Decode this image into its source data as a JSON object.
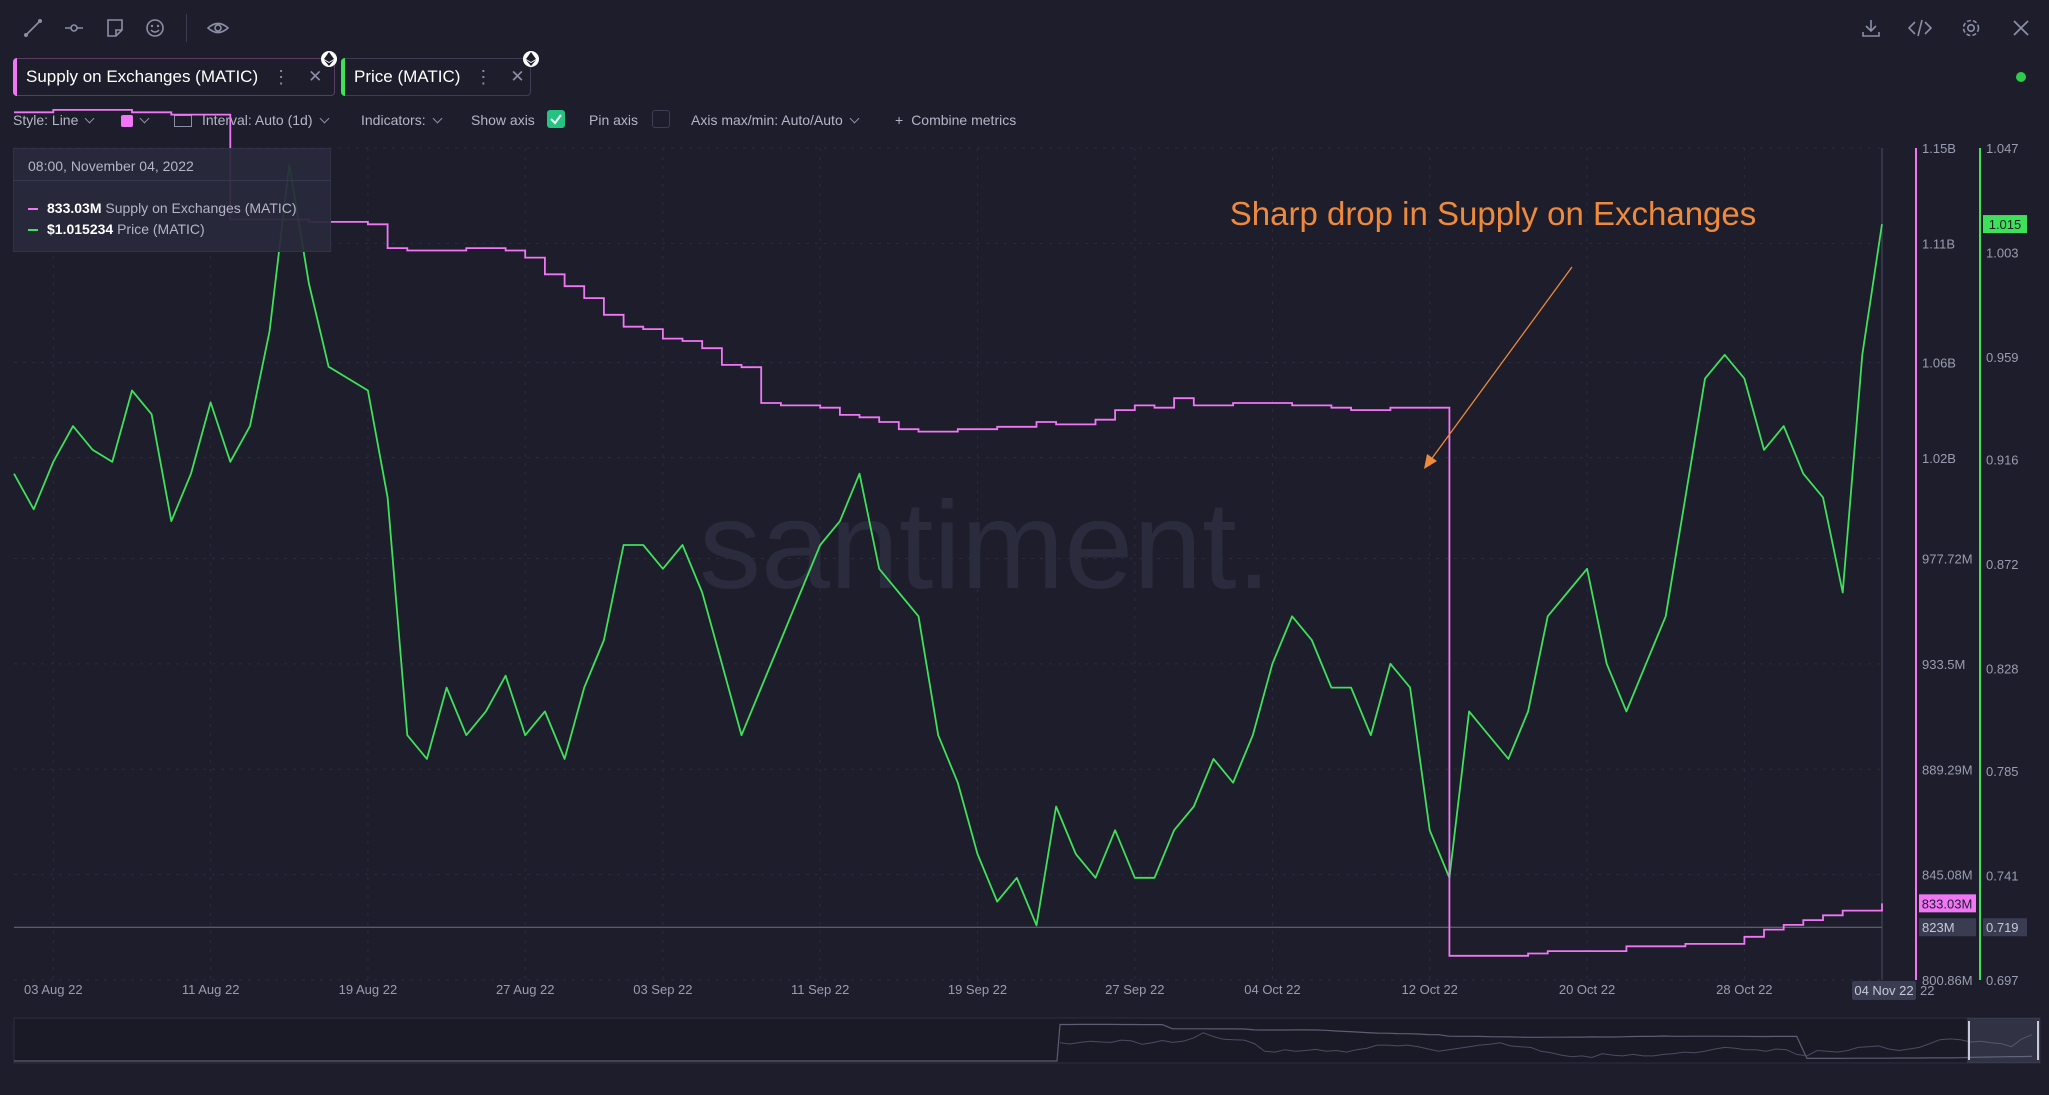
{
  "colors": {
    "supply": "#f176f6",
    "price": "#3fe05a",
    "annotation": "#ee8a3c",
    "background": "#1d1d2b"
  },
  "toolbar": {
    "left_icons": [
      "line-tool-icon",
      "horizontal-line-icon",
      "note-icon",
      "emoji-icon",
      "eye-icon"
    ],
    "right_icons": [
      "download-icon",
      "embed-code-icon",
      "settings-gear-icon",
      "close-icon"
    ]
  },
  "metrics": [
    {
      "label": "Supply on Exchanges (MATIC)",
      "color": "#f176f6",
      "badge": "ethereum-icon"
    },
    {
      "label": "Price (MATIC)",
      "color": "#3fe05a",
      "badge": "ethereum-icon"
    }
  ],
  "settings": {
    "style": "Style: Line",
    "interval": "Interval: Auto (1d)",
    "indicators": "Indicators:",
    "show_axis": "Show axis",
    "show_axis_checked": true,
    "pin_axis": "Pin axis",
    "pin_axis_checked": false,
    "axis_maxmin": "Axis max/min: Auto/Auto",
    "combine": "Combine metrics",
    "combine_prefix": "+"
  },
  "tooltip": {
    "date": "08:00, November 04, 2022",
    "rows": [
      {
        "value": "833.03M",
        "label": "Supply on Exchanges (MATIC)"
      },
      {
        "value": "$1.015234",
        "label": "Price (MATIC)"
      }
    ]
  },
  "annotation": "Sharp drop in Supply on Exchanges",
  "watermark": "santiment.",
  "chart_data": {
    "type": "line",
    "x_start": "2022-08-01",
    "x_end": "2022-11-04",
    "xtick_labels": [
      "03 Aug 22",
      "11 Aug 22",
      "19 Aug 22",
      "27 Aug 22",
      "03 Sep 22",
      "11 Sep 22",
      "19 Sep 22",
      "27 Sep 22",
      "04 Oct 22",
      "12 Oct 22",
      "20 Oct 22",
      "28 Oct 22"
    ],
    "x_end_label": "04 Nov 22",
    "x_end_label_tail": "22",
    "axes": {
      "supply": {
        "ticks": [
          "1.15B",
          "1.11B",
          "1.06B",
          "1.02B",
          "977.72M",
          "933.5M",
          "889.29M",
          "845.08M",
          "800.86M"
        ],
        "tick_values": [
          1150000000,
          1110000000,
          1060000000,
          1020000000,
          977720000,
          933500000,
          889290000,
          845080000,
          800860000
        ],
        "current_label": "833.03M",
        "current_value": 833030000,
        "crosshair_label": "823M",
        "crosshair_value": 823000000
      },
      "price": {
        "ticks": [
          "1.047",
          "1.003",
          "0.959",
          "0.916",
          "0.872",
          "0.828",
          "0.785",
          "0.741",
          "0.697"
        ],
        "tick_values": [
          1.047,
          1.003,
          0.959,
          0.916,
          0.872,
          0.828,
          0.785,
          0.741,
          0.697
        ],
        "current_label": "1.015",
        "current_value": 1.015,
        "crosshair_label": "0.719",
        "crosshair_value": 0.719
      }
    },
    "series": [
      {
        "name": "Supply on Exchanges (MATIC)",
        "axis": "supply",
        "step": true,
        "dates": [
          "2022-08-01",
          "2022-08-02",
          "2022-08-03",
          "2022-08-04",
          "2022-08-05",
          "2022-08-06",
          "2022-08-07",
          "2022-08-08",
          "2022-08-09",
          "2022-08-10",
          "2022-08-11",
          "2022-08-12",
          "2022-08-13",
          "2022-08-14",
          "2022-08-15",
          "2022-08-16",
          "2022-08-17",
          "2022-08-18",
          "2022-08-19",
          "2022-08-20",
          "2022-08-21",
          "2022-08-22",
          "2022-08-23",
          "2022-08-24",
          "2022-08-25",
          "2022-08-26",
          "2022-08-27",
          "2022-08-28",
          "2022-08-29",
          "2022-08-30",
          "2022-08-31",
          "2022-09-01",
          "2022-09-02",
          "2022-09-03",
          "2022-09-04",
          "2022-09-05",
          "2022-09-06",
          "2022-09-07",
          "2022-09-08",
          "2022-09-09",
          "2022-09-10",
          "2022-09-11",
          "2022-09-12",
          "2022-09-13",
          "2022-09-14",
          "2022-09-15",
          "2022-09-16",
          "2022-09-17",
          "2022-09-18",
          "2022-09-19",
          "2022-09-20",
          "2022-09-21",
          "2022-09-22",
          "2022-09-23",
          "2022-09-24",
          "2022-09-25",
          "2022-09-26",
          "2022-09-27",
          "2022-09-28",
          "2022-09-29",
          "2022-09-30",
          "2022-10-01",
          "2022-10-02",
          "2022-10-03",
          "2022-10-04",
          "2022-10-05",
          "2022-10-06",
          "2022-10-07",
          "2022-10-08",
          "2022-10-09",
          "2022-10-10",
          "2022-10-11",
          "2022-10-12",
          "2022-10-13",
          "2022-10-14",
          "2022-10-15",
          "2022-10-16",
          "2022-10-17",
          "2022-10-18",
          "2022-10-19",
          "2022-10-20",
          "2022-10-21",
          "2022-10-22",
          "2022-10-23",
          "2022-10-24",
          "2022-10-25",
          "2022-10-26",
          "2022-10-27",
          "2022-10-28",
          "2022-10-29",
          "2022-10-30",
          "2022-10-31",
          "2022-11-01",
          "2022-11-02",
          "2022-11-03",
          "2022-11-04"
        ],
        "values": [
          1165,
          1165,
          1166,
          1166,
          1166,
          1166,
          1165,
          1165,
          1164,
          1164,
          1164,
          1120,
          1120,
          1120,
          1120,
          1119,
          1119,
          1119,
          1118,
          1108,
          1107,
          1107,
          1107,
          1108,
          1108,
          1107,
          1104,
          1097,
          1092,
          1087,
          1080,
          1075,
          1074,
          1070,
          1069,
          1066,
          1059,
          1058,
          1043,
          1042,
          1042,
          1041,
          1038,
          1037,
          1035,
          1032,
          1031,
          1031,
          1032,
          1032,
          1033,
          1033,
          1035,
          1034,
          1034,
          1036,
          1040,
          1042,
          1041,
          1045,
          1042,
          1042,
          1043,
          1043,
          1043,
          1042,
          1042,
          1041,
          1040,
          1040,
          1041,
          1041,
          1041,
          811,
          811,
          811,
          811,
          812,
          813,
          813,
          813,
          813,
          815,
          815,
          815,
          816,
          816,
          816,
          819,
          822,
          824,
          826,
          828,
          830,
          830,
          833
        ]
      },
      {
        "name": "Price (MATIC)",
        "axis": "price",
        "dates": [
          "2022-08-01",
          "2022-08-02",
          "2022-08-03",
          "2022-08-04",
          "2022-08-05",
          "2022-08-06",
          "2022-08-07",
          "2022-08-08",
          "2022-08-09",
          "2022-08-10",
          "2022-08-11",
          "2022-08-12",
          "2022-08-13",
          "2022-08-14",
          "2022-08-15",
          "2022-08-16",
          "2022-08-17",
          "2022-08-18",
          "2022-08-19",
          "2022-08-20",
          "2022-08-21",
          "2022-08-22",
          "2022-08-23",
          "2022-08-24",
          "2022-08-25",
          "2022-08-26",
          "2022-08-27",
          "2022-08-28",
          "2022-08-29",
          "2022-08-30",
          "2022-08-31",
          "2022-09-01",
          "2022-09-02",
          "2022-09-03",
          "2022-09-04",
          "2022-09-05",
          "2022-09-06",
          "2022-09-07",
          "2022-09-08",
          "2022-09-09",
          "2022-09-10",
          "2022-09-11",
          "2022-09-12",
          "2022-09-13",
          "2022-09-14",
          "2022-09-15",
          "2022-09-16",
          "2022-09-17",
          "2022-09-18",
          "2022-09-19",
          "2022-09-20",
          "2022-09-21",
          "2022-09-22",
          "2022-09-23",
          "2022-09-24",
          "2022-09-25",
          "2022-09-26",
          "2022-09-27",
          "2022-09-28",
          "2022-09-29",
          "2022-09-30",
          "2022-10-01",
          "2022-10-02",
          "2022-10-03",
          "2022-10-04",
          "2022-10-05",
          "2022-10-06",
          "2022-10-07",
          "2022-10-08",
          "2022-10-09",
          "2022-10-10",
          "2022-10-11",
          "2022-10-12",
          "2022-10-13",
          "2022-10-14",
          "2022-10-15",
          "2022-10-16",
          "2022-10-17",
          "2022-10-18",
          "2022-10-19",
          "2022-10-20",
          "2022-10-21",
          "2022-10-22",
          "2022-10-23",
          "2022-10-24",
          "2022-10-25",
          "2022-10-26",
          "2022-10-27",
          "2022-10-28",
          "2022-10-29",
          "2022-10-30",
          "2022-10-31",
          "2022-11-01",
          "2022-11-02",
          "2022-11-03",
          "2022-11-04"
        ],
        "values": [
          0.91,
          0.895,
          0.915,
          0.93,
          0.92,
          0.915,
          0.945,
          0.935,
          0.89,
          0.91,
          0.94,
          0.915,
          0.93,
          0.97,
          1.04,
          0.99,
          0.955,
          0.95,
          0.945,
          0.9,
          0.8,
          0.79,
          0.82,
          0.8,
          0.81,
          0.825,
          0.8,
          0.81,
          0.79,
          0.82,
          0.84,
          0.88,
          0.88,
          0.87,
          0.88,
          0.86,
          0.83,
          0.8,
          0.82,
          0.84,
          0.86,
          0.88,
          0.89,
          0.91,
          0.87,
          0.86,
          0.85,
          0.8,
          0.78,
          0.75,
          0.73,
          0.74,
          0.72,
          0.77,
          0.75,
          0.74,
          0.76,
          0.74,
          0.74,
          0.76,
          0.77,
          0.79,
          0.78,
          0.8,
          0.83,
          0.85,
          0.84,
          0.82,
          0.82,
          0.8,
          0.83,
          0.82,
          0.76,
          0.74,
          0.81,
          0.8,
          0.79,
          0.81,
          0.85,
          0.86,
          0.87,
          0.83,
          0.81,
          0.83,
          0.85,
          0.9,
          0.95,
          0.96,
          0.95,
          0.92,
          0.93,
          0.91,
          0.9,
          0.86,
          0.96,
          1.015
        ]
      }
    ]
  }
}
